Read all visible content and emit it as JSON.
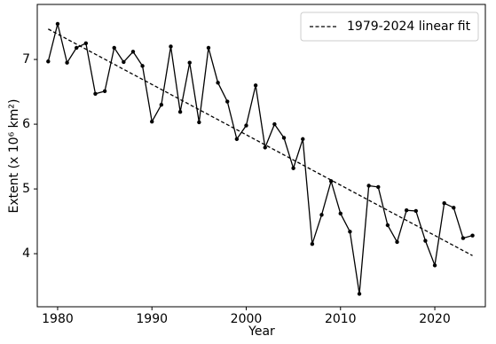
{
  "chart_data": {
    "type": "line",
    "xlabel": "Year",
    "ylabel": "Extent (x 10⁶ km²)",
    "series": [
      {
        "color": "#000000",
        "dash": false,
        "markers": true,
        "x": [
          1979,
          1980,
          1981,
          1982,
          1983,
          1984,
          1985,
          1986,
          1987,
          1988,
          1989,
          1990,
          1991,
          1992,
          1993,
          1994,
          1995,
          1996,
          1997,
          1998,
          1999,
          2000,
          2001,
          2002,
          2003,
          2004,
          2005,
          2006,
          2007,
          2008,
          2009,
          2010,
          2011,
          2012,
          2013,
          2014,
          2015,
          2016,
          2017,
          2018,
          2019,
          2020,
          2021,
          2022,
          2023,
          2024
        ],
        "values": [
          6.97,
          7.55,
          6.95,
          7.18,
          7.25,
          6.47,
          6.51,
          7.18,
          6.96,
          7.12,
          6.9,
          6.04,
          6.3,
          7.2,
          6.19,
          6.95,
          6.03,
          7.18,
          6.64,
          6.35,
          5.77,
          5.98,
          6.6,
          5.64,
          6.0,
          5.79,
          5.32,
          5.77,
          4.15,
          4.6,
          5.12,
          4.62,
          4.34,
          3.38,
          5.05,
          5.03,
          4.44,
          4.18,
          4.67,
          4.66,
          4.2,
          3.82,
          4.78,
          4.71,
          4.24,
          4.28
        ]
      },
      {
        "name": "1979-2024 linear fit",
        "color": "#000000",
        "dash": true,
        "markers": false,
        "x": [
          1979,
          2024
        ],
        "values": [
          7.47,
          3.97
        ]
      }
    ],
    "xlim": [
      1977.84,
      2025.36
    ],
    "xticks": [
      1980,
      1990,
      2000,
      2010,
      2020
    ],
    "ylim": [
      3.18,
      7.85
    ],
    "yticks": [
      4,
      5,
      6,
      7
    ],
    "grid": false,
    "legend": "upper right"
  }
}
